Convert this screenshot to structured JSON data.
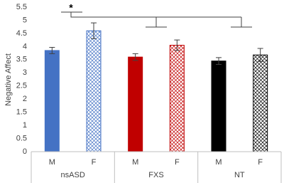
{
  "chart_data": {
    "type": "bar",
    "y_label": "Negative Affect",
    "annotation": "*",
    "categories": [
      "M",
      "F",
      "M",
      "F",
      "M",
      "F"
    ],
    "groups": [
      "nsASD",
      "FXS",
      "NT"
    ],
    "values": [
      3.85,
      4.6,
      3.6,
      4.05,
      3.45,
      3.68
    ],
    "errors": [
      0.12,
      0.3,
      0.13,
      0.2,
      0.13,
      0.25
    ],
    "colors": [
      "#4472c4",
      "#4472c4",
      "#c00000",
      "#c00000",
      "#000000",
      "#000000"
    ],
    "fills": [
      "solid",
      "crosshatch",
      "solid",
      "crosshatch",
      "solid",
      "crosshatch"
    ],
    "ylim": [
      0,
      5.5
    ],
    "yticks": [
      0,
      0.5,
      1,
      1.5,
      2,
      2.5,
      3,
      3.5,
      4,
      4.5,
      5,
      5.5
    ],
    "grid": false
  }
}
